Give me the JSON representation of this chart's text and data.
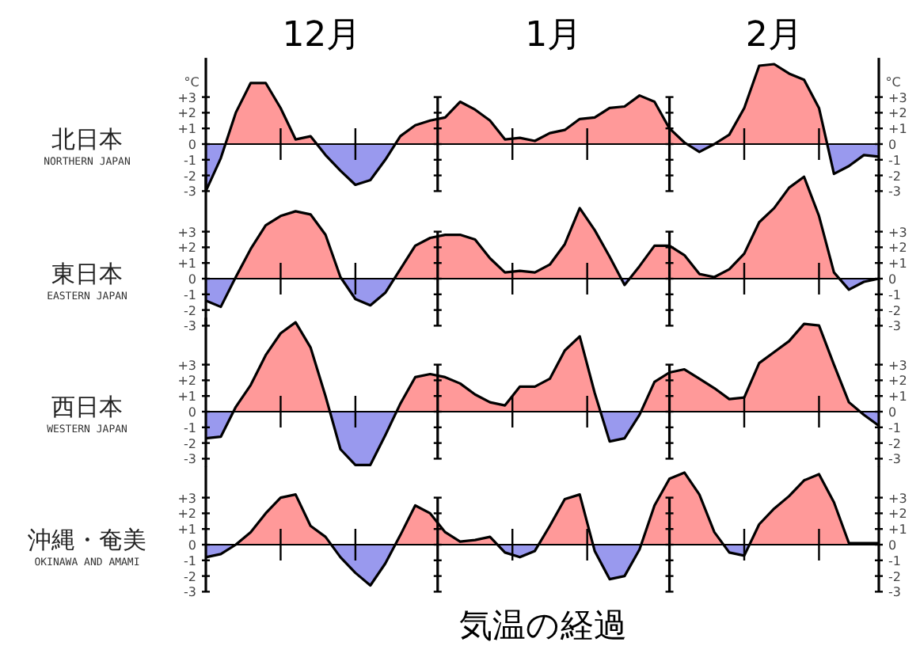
{
  "chart_data": [
    {
      "type": "area",
      "title": "北日本",
      "subtitle": "NORTHERN JAPAN",
      "ylabel": "°C",
      "y2label": "°C",
      "annotations": [
        "12月",
        "1月",
        "2月"
      ],
      "categories": [
        null,
        null,
        null,
        null,
        null,
        null,
        null,
        null,
        null,
        null,
        null,
        null,
        null,
        null,
        null,
        null,
        null,
        null,
        null,
        null,
        null,
        null,
        null,
        null,
        null,
        null,
        null,
        null,
        null,
        null,
        null,
        null,
        null,
        null,
        null,
        null,
        null,
        null,
        null,
        null,
        null,
        null,
        null,
        null,
        null,
        null
      ],
      "ylim": [
        -3,
        5.5
      ],
      "yticks": [
        {
          "value": 3,
          "label": "+3"
        },
        {
          "value": 2,
          "label": "+2"
        },
        {
          "value": 1,
          "label": "+1"
        },
        {
          "value": 0,
          "label": "0"
        },
        {
          "value": -1,
          "label": "-1"
        },
        {
          "value": -2,
          "label": "-2"
        },
        {
          "value": -3,
          "label": "-3"
        }
      ],
      "y2lim": [
        -3,
        5.5
      ],
      "y2ticks": [
        {
          "value": 3,
          "label": "+3"
        },
        {
          "value": 2,
          "label": "+2"
        },
        {
          "value": 1,
          "label": "+1"
        },
        {
          "value": 0,
          "label": "0"
        },
        {
          "value": -1,
          "label": "-1"
        },
        {
          "value": -2,
          "label": "-2"
        },
        {
          "value": -3,
          "label": "-3"
        }
      ],
      "series": [
        {
          "values": [
            -3,
            -0.9,
            2.0,
            3.9,
            3.9,
            2.3,
            0.3,
            0.5,
            -0.7,
            -1.7,
            -2.6,
            -2.3,
            -1.0,
            0.5,
            1.2,
            1.5,
            1.7,
            2.7,
            2.2,
            1.5,
            0.3,
            0.4,
            0.2,
            0.7,
            0.9,
            1.6,
            1.7,
            2.3,
            2.4,
            3.1,
            2.7,
            1.0,
            0.1,
            -0.5,
            0.0,
            0.6,
            2.3,
            5.0,
            5.1,
            4.5,
            4.1,
            2.3,
            -1.9,
            -1.4,
            -0.7,
            -0.8
          ],
          "colors": [
            "#9999ee",
            "#9999ee",
            "#ff9999",
            "#ff9999",
            "#ff9999",
            "#ff9999",
            "#ff9999",
            "#ff9999",
            "#9999ee",
            "#9999ee",
            "#9999ee",
            "#9999ee",
            "#9999ee",
            "#ff9999",
            "#ff9999",
            "#ff9999",
            "#ff9999",
            "#ff9999",
            "#ff9999",
            "#ff9999",
            "#ff9999",
            "#ff9999",
            "#ff9999",
            "#ff9999",
            "#ff9999",
            "#ff9999",
            "#ff9999",
            "#ff9999",
            "#ff9999",
            "#ff9999",
            "#ff9999",
            "#ff9999",
            "#ff9999",
            "#9999ee",
            "#ff9999",
            "#ff9999",
            "#ff9999",
            "#ff9999",
            "#ff9999",
            "#ff9999",
            "#ff9999",
            "#ff9999",
            "#9999ee",
            "#9999ee",
            "#9999ee",
            "#9999ee"
          ]
        }
      ]
    },
    {
      "type": "area",
      "title": "東日本",
      "subtitle": "EASTERN JAPAN",
      "categories": [
        null,
        null,
        null,
        null,
        null,
        null,
        null,
        null,
        null,
        null,
        null,
        null,
        null,
        null,
        null,
        null,
        null,
        null,
        null,
        null,
        null,
        null,
        null,
        null,
        null,
        null,
        null,
        null,
        null,
        null,
        null,
        null,
        null,
        null,
        null,
        null,
        null,
        null,
        null,
        null,
        null,
        null,
        null,
        null,
        null,
        null
      ],
      "ylim": [
        -3,
        6.6
      ],
      "yticks": [
        {
          "value": 3,
          "label": "+3"
        },
        {
          "value": 2,
          "label": "+2"
        },
        {
          "value": 1,
          "label": "+1"
        },
        {
          "value": 0,
          "label": "0"
        },
        {
          "value": -1,
          "label": "-1"
        },
        {
          "value": -2,
          "label": "-2"
        },
        {
          "value": -3,
          "label": "-3"
        }
      ],
      "y2lim": [
        -3,
        6.6
      ],
      "y2ticks": [
        {
          "value": 3,
          "label": "+3"
        },
        {
          "value": 2,
          "label": "+2"
        },
        {
          "value": 1,
          "label": "+1"
        },
        {
          "value": 0,
          "label": "0"
        },
        {
          "value": -1,
          "label": "-1"
        },
        {
          "value": -2,
          "label": "-2"
        },
        {
          "value": -3,
          "label": "-3"
        }
      ],
      "series": [
        {
          "values": [
            -1.4,
            -1.8,
            0.1,
            1.9,
            3.4,
            4.0,
            4.3,
            4.1,
            2.8,
            0.1,
            -1.3,
            -1.7,
            -0.9,
            0.6,
            2.1,
            2.6,
            2.8,
            2.8,
            2.5,
            1.3,
            0.4,
            0.5,
            0.4,
            0.9,
            2.2,
            4.5,
            3.1,
            1.4,
            -0.4,
            0.8,
            2.1,
            2.1,
            1.5,
            0.3,
            0.1,
            0.6,
            1.6,
            3.6,
            4.5,
            5.8,
            6.5,
            4.0,
            0.4,
            -0.7,
            -0.2,
            0
          ],
          "colors": [
            "#9999ee",
            "#9999ee",
            "#ff9999",
            "#ff9999",
            "#ff9999",
            "#ff9999",
            "#ff9999",
            "#ff9999",
            "#ff9999",
            "#ff9999",
            "#9999ee",
            "#9999ee",
            "#9999ee",
            "#ff9999",
            "#ff9999",
            "#ff9999",
            "#ff9999",
            "#ff9999",
            "#ff9999",
            "#ff9999",
            "#ff9999",
            "#ff9999",
            "#ff9999",
            "#ff9999",
            "#ff9999",
            "#ff9999",
            "#ff9999",
            "#ff9999",
            "#9999ee",
            "#ff9999",
            "#ff9999",
            "#ff9999",
            "#ff9999",
            "#ff9999",
            "#ff9999",
            "#ff9999",
            "#ff9999",
            "#ff9999",
            "#ff9999",
            "#ff9999",
            "#ff9999",
            "#ff9999",
            "#ff9999",
            "#9999ee",
            "#9999ee",
            "#ff9999"
          ]
        }
      ]
    },
    {
      "type": "area",
      "title": "西日本",
      "subtitle": "WESTERN JAPAN",
      "categories": [
        null,
        null,
        null,
        null,
        null,
        null,
        null,
        null,
        null,
        null,
        null,
        null,
        null,
        null,
        null,
        null,
        null,
        null,
        null,
        null,
        null,
        null,
        null,
        null,
        null,
        null,
        null,
        null,
        null,
        null,
        null,
        null,
        null,
        null,
        null,
        null,
        null,
        null,
        null,
        null,
        null,
        null,
        null,
        null,
        null,
        null
      ],
      "ylim": [
        -3.5,
        6
      ],
      "yticks": [
        {
          "value": 3,
          "label": "+3"
        },
        {
          "value": 2,
          "label": "+2"
        },
        {
          "value": 1,
          "label": "+1"
        },
        {
          "value": 0,
          "label": "0"
        },
        {
          "value": -1,
          "label": "-1"
        },
        {
          "value": -2,
          "label": "-2"
        },
        {
          "value": -3,
          "label": "-3"
        }
      ],
      "y2lim": [
        -3.5,
        6
      ],
      "y2ticks": [
        {
          "value": 3,
          "label": "+3"
        },
        {
          "value": 2,
          "label": "+2"
        },
        {
          "value": 1,
          "label": "+1"
        },
        {
          "value": 0,
          "label": "0"
        },
        {
          "value": -1,
          "label": "-1"
        },
        {
          "value": -2,
          "label": "-2"
        },
        {
          "value": -3,
          "label": "-3"
        }
      ],
      "series": [
        {
          "values": [
            -1.7,
            -1.6,
            0.3,
            1.7,
            3.6,
            5.0,
            5.7,
            4.1,
            1.0,
            -2.4,
            -3.4,
            -3.4,
            -1.5,
            0.5,
            2.2,
            2.4,
            2.2,
            1.8,
            1.1,
            0.6,
            0.4,
            1.6,
            1.6,
            2.1,
            3.9,
            4.8,
            1.2,
            -1.9,
            -1.7,
            -0.2,
            1.9,
            2.5,
            2.7,
            2.1,
            1.5,
            0.8,
            0.9,
            3.1,
            3.8,
            4.5,
            5.6,
            5.5,
            3.0,
            0.6,
            -0.2,
            -0.9
          ],
          "colors": [
            "#9999ee",
            "#9999ee",
            "#ff9999",
            "#ff9999",
            "#ff9999",
            "#ff9999",
            "#ff9999",
            "#ff9999",
            "#ff9999",
            "#9999ee",
            "#9999ee",
            "#9999ee",
            "#9999ee",
            "#ff9999",
            "#ff9999",
            "#ff9999",
            "#ff9999",
            "#ff9999",
            "#ff9999",
            "#ff9999",
            "#ff9999",
            "#ff9999",
            "#ff9999",
            "#ff9999",
            "#ff9999",
            "#ff9999",
            "#ff9999",
            "#9999ee",
            "#9999ee",
            "#9999ee",
            "#ff9999",
            "#ff9999",
            "#ff9999",
            "#ff9999",
            "#ff9999",
            "#ff9999",
            "#ff9999",
            "#ff9999",
            "#ff9999",
            "#ff9999",
            "#ff9999",
            "#ff9999",
            "#ff9999",
            "#ff9999",
            "#9999ee",
            "#9999ee"
          ]
        }
      ]
    },
    {
      "type": "area",
      "title": "沖縄・奄美",
      "subtitle": "OKINAWA AND AMAMI",
      "annotations": [
        "気温の経過"
      ],
      "categories": [
        null,
        null,
        null,
        null,
        null,
        null,
        null,
        null,
        null,
        null,
        null,
        null,
        null,
        null,
        null,
        null,
        null,
        null,
        null,
        null,
        null,
        null,
        null,
        null,
        null,
        null,
        null,
        null,
        null,
        null,
        null,
        null,
        null,
        null,
        null,
        null,
        null,
        null,
        null,
        null,
        null,
        null,
        null,
        null,
        null,
        null
      ],
      "ylim": [
        -3,
        5
      ],
      "yticks": [
        {
          "value": 3,
          "label": "+3"
        },
        {
          "value": 2,
          "label": "+2"
        },
        {
          "value": 1,
          "label": "+1"
        },
        {
          "value": 0,
          "label": "0"
        },
        {
          "value": -1,
          "label": "-1"
        },
        {
          "value": -2,
          "label": "-2"
        },
        {
          "value": -3,
          "label": "-3"
        }
      ],
      "y2lim": [
        -3,
        5
      ],
      "y2ticks": [
        {
          "value": 3,
          "label": "+3"
        },
        {
          "value": 2,
          "label": "+2"
        },
        {
          "value": 1,
          "label": "+1"
        },
        {
          "value": 0,
          "label": "0"
        },
        {
          "value": -1,
          "label": "-1"
        },
        {
          "value": -2,
          "label": "-2"
        },
        {
          "value": -3,
          "label": "-3"
        }
      ],
      "series": [
        {
          "values": [
            -0.8,
            -0.6,
            0.0,
            0.8,
            2.0,
            3.0,
            3.2,
            1.2,
            0.5,
            -0.8,
            -1.8,
            -2.6,
            -1.2,
            0.6,
            2.5,
            2.0,
            0.8,
            0.2,
            0.3,
            0.5,
            -0.5,
            -0.8,
            -0.4,
            1.2,
            2.9,
            3.2,
            -0.4,
            -2.2,
            -2.0,
            -0.3,
            2.5,
            4.2,
            4.6,
            3.2,
            0.8,
            -0.5,
            -0.7,
            1.3,
            2.3,
            3.1,
            4.1,
            4.5,
            2.7,
            0.1,
            0.1,
            0.1
          ],
          "colors": [
            "#9999ee",
            "#9999ee",
            "#ff9999",
            "#ff9999",
            "#ff9999",
            "#ff9999",
            "#ff9999",
            "#ff9999",
            "#ff9999",
            "#9999ee",
            "#9999ee",
            "#9999ee",
            "#9999ee",
            "#ff9999",
            "#ff9999",
            "#ff9999",
            "#ff9999",
            "#ff9999",
            "#ff9999",
            "#ff9999",
            "#9999ee",
            "#9999ee",
            "#9999ee",
            "#ff9999",
            "#ff9999",
            "#ff9999",
            "#9999ee",
            "#9999ee",
            "#9999ee",
            "#9999ee",
            "#ff9999",
            "#ff9999",
            "#ff9999",
            "#ff9999",
            "#ff9999",
            "#9999ee",
            "#9999ee",
            "#ff9999",
            "#ff9999",
            "#ff9999",
            "#ff9999",
            "#ff9999",
            "#ff9999",
            "#ff9999",
            "#ff9999",
            "#ff9999"
          ]
        }
      ]
    }
  ]
}
